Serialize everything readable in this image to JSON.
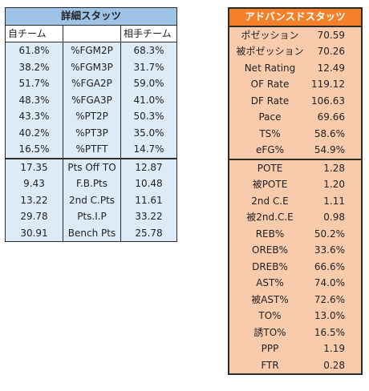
{
  "detail": {
    "title": "詳細スタッツ",
    "headers": [
      "自チーム",
      "",
      "相手チーム"
    ],
    "rows": [
      {
        "own": "61.8%",
        "label": "%FGM2P",
        "opp": "68.3%"
      },
      {
        "own": "38.2%",
        "label": "%FGM3P",
        "opp": "31.7%"
      },
      {
        "own": "51.7%",
        "label": "%FGA2P",
        "opp": "59.0%"
      },
      {
        "own": "48.3%",
        "label": "%FGA3P",
        "opp": "41.0%"
      },
      {
        "own": "43.3%",
        "label": "%PT2P",
        "opp": "50.3%"
      },
      {
        "own": "40.2%",
        "label": "%PT3P",
        "opp": "35.0%"
      },
      {
        "own": "16.5%",
        "label": "%PTFT",
        "opp": "14.7%"
      },
      {
        "own": "17.35",
        "label": "Pts Off TO",
        "opp": "12.87"
      },
      {
        "own": "9.43",
        "label": "F.B.Pts",
        "opp": "10.48"
      },
      {
        "own": "13.22",
        "label": "2nd C.Pts",
        "opp": "11.61"
      },
      {
        "own": "29.78",
        "label": "Pts.I.P",
        "opp": "33.22"
      },
      {
        "own": "30.91",
        "label": "Bench Pts",
        "opp": "25.78"
      }
    ]
  },
  "advanced": {
    "title": "アドバンスドスタッツ",
    "rows": [
      {
        "label": "ポゼッション",
        "value": "70.59"
      },
      {
        "label": "被ポゼッション",
        "value": "70.26"
      },
      {
        "label": "Net Rating",
        "value": "12.49"
      },
      {
        "label": "OF Rate",
        "value": "119.12"
      },
      {
        "label": "DF Rate",
        "value": "106.63"
      },
      {
        "label": "Pace",
        "value": "69.66"
      },
      {
        "label": "TS%",
        "value": "58.6%"
      },
      {
        "label": "eFG%",
        "value": "54.9%"
      },
      {
        "label": "POTE",
        "value": "1.28"
      },
      {
        "label": "被POTE",
        "value": "1.20"
      },
      {
        "label": "2nd C.E",
        "value": "1.11"
      },
      {
        "label": "被2nd.C.E",
        "value": "0.98"
      },
      {
        "label": "REB%",
        "value": "50.2%"
      },
      {
        "label": "OREB%",
        "value": "33.6%"
      },
      {
        "label": "DREB%",
        "value": "66.6%"
      },
      {
        "label": "AST%",
        "value": "74.0%"
      },
      {
        "label": "被AST%",
        "value": "72.6%"
      },
      {
        "label": "TO%",
        "value": "13.0%"
      },
      {
        "label": "誘TO%",
        "value": "16.5%"
      },
      {
        "label": "PPP",
        "value": "1.19"
      },
      {
        "label": "FTR",
        "value": "0.28"
      }
    ]
  }
}
